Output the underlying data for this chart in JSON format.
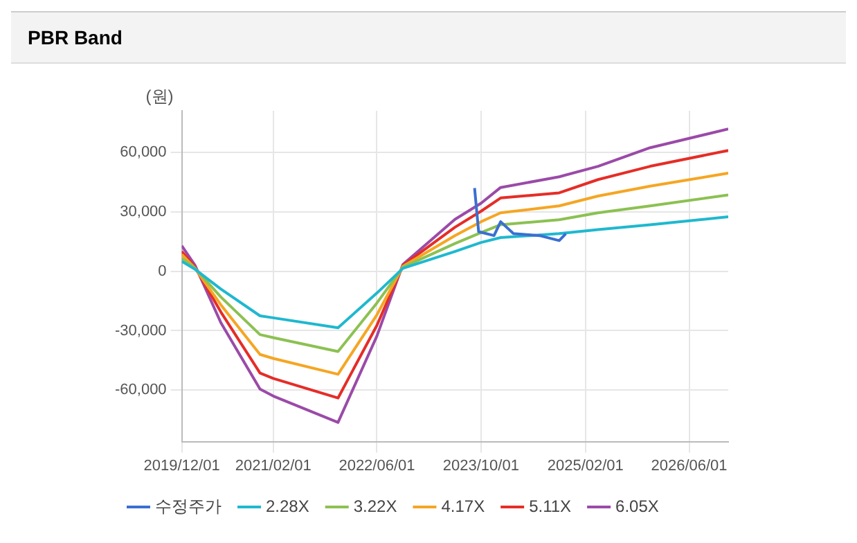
{
  "chart_data": {
    "type": "line",
    "title": "PBR Band",
    "ylabel": "(원)",
    "xlim": [
      "2019-12-01",
      "2026-12-01"
    ],
    "xticks": [
      {
        "value": "2019-12-01",
        "label": "2019/12/01"
      },
      {
        "value": "2021-02-01",
        "label": "2021/02/01"
      },
      {
        "value": "2022-06-01",
        "label": "2022/06/01"
      },
      {
        "value": "2023-10-01",
        "label": "2023/10/01"
      },
      {
        "value": "2025-02-01",
        "label": "2025/02/01"
      },
      {
        "value": "2026-06-01",
        "label": "2026/06/01"
      }
    ],
    "ylim": [
      -86000,
      81000
    ],
    "yticks": [
      {
        "value": -60000,
        "label": "-60,000"
      },
      {
        "value": -30000,
        "label": "-30,000"
      },
      0,
      {
        "value": 30000,
        "label": "30,000"
      },
      {
        "value": 60000,
        "label": "60,000"
      }
    ],
    "grid": true,
    "legend": "bottom",
    "marker": "none",
    "line_style": "solid",
    "series": [
      {
        "name": "수정주가",
        "color": "#3a6fd0",
        "x": [
          "2023-09-01",
          "2023-09-20",
          "2023-12",
          "2024-01",
          "2024-03",
          "2024-07",
          "2024-10",
          "2024-11"
        ],
        "values": [
          42000,
          20000,
          18000,
          25000,
          19000,
          18000,
          15500,
          19000
        ]
      },
      {
        "name": "2.28X",
        "color": "#1fb8cf",
        "x": [
          "2019-12",
          "2020-02",
          "2020-06",
          "2020-12",
          "2021-02",
          "2021-12",
          "2022-06",
          "2022-10",
          "2023-06",
          "2023-10",
          "2024-01",
          "2024-10",
          "2025-04",
          "2025-12",
          "2026-12"
        ],
        "values": [
          5000,
          1000,
          -9000,
          -22500,
          -23500,
          -28500,
          -11000,
          1500,
          10000,
          14500,
          17000,
          19000,
          21000,
          23500,
          27500
        ]
      },
      {
        "name": "3.22X",
        "color": "#8cc152",
        "x": [
          "2019-12",
          "2020-02",
          "2020-06",
          "2020-12",
          "2021-02",
          "2021-12",
          "2022-06",
          "2022-10",
          "2023-06",
          "2023-10",
          "2024-01",
          "2024-10",
          "2025-04",
          "2025-12",
          "2026-12"
        ],
        "values": [
          6500,
          1500,
          -13000,
          -32000,
          -33500,
          -40500,
          -16000,
          2000,
          14000,
          19500,
          23500,
          26000,
          29500,
          33000,
          38500
        ]
      },
      {
        "name": "4.17X",
        "color": "#f5a623",
        "x": [
          "2019-12",
          "2020-02",
          "2020-06",
          "2020-12",
          "2021-02",
          "2021-12",
          "2022-06",
          "2022-10",
          "2023-06",
          "2023-10",
          "2024-01",
          "2024-10",
          "2025-04",
          "2025-12",
          "2026-12"
        ],
        "values": [
          8500,
          1500,
          -17000,
          -42000,
          -44000,
          -52000,
          -22000,
          2500,
          18000,
          25000,
          29500,
          33000,
          38000,
          43000,
          49500
        ]
      },
      {
        "name": "5.11X",
        "color": "#e52d27",
        "x": [
          "2019-12",
          "2020-02",
          "2020-06",
          "2020-12",
          "2021-02",
          "2021-12",
          "2022-06",
          "2022-10",
          "2023-06",
          "2023-10",
          "2024-01",
          "2024-10",
          "2025-04",
          "2025-12",
          "2026-12"
        ],
        "values": [
          10000,
          2000,
          -20600,
          -51400,
          -54100,
          -64000,
          -27300,
          3000,
          22200,
          30300,
          37000,
          39600,
          46300,
          53000,
          61000
        ]
      },
      {
        "name": "6.05X",
        "color": "#9b4aa8",
        "x": [
          "2019-12",
          "2020-02",
          "2020-06",
          "2020-12",
          "2021-02",
          "2021-12",
          "2022-06",
          "2022-10",
          "2023-06",
          "2023-10",
          "2024-01",
          "2024-10",
          "2025-04",
          "2025-12",
          "2026-12"
        ],
        "values": [
          12900,
          3000,
          -26000,
          -59500,
          -63000,
          -76300,
          -32700,
          3500,
          26200,
          34300,
          42300,
          47700,
          53000,
          62400,
          71800
        ]
      }
    ]
  }
}
